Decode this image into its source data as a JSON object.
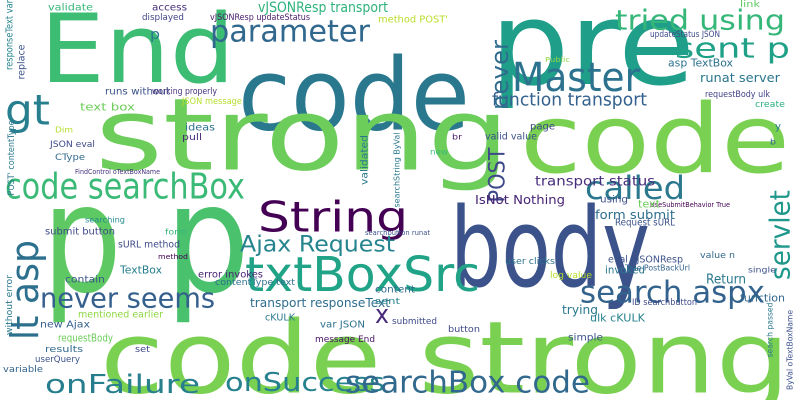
{
  "words": [
    "pre",
    "End",
    "code",
    "strong",
    "code",
    "p",
    "p",
    "body",
    "code strong",
    "String",
    "txtBoxSrc",
    "Master",
    "parameter",
    "tried using",
    "sent p",
    "gt",
    "lt asp",
    "code searchBox",
    "never seems",
    "onFailure",
    "onSuccess",
    "searchBox code",
    "search aspx",
    "called",
    "servlet",
    "Ajax Request",
    "function transport",
    "never",
    "POST",
    "x",
    "vJSONResp transport",
    "transport status",
    "IsNot Nothing",
    "form submit",
    "runat server",
    "asp TextBox",
    "updateStatus JSON",
    "link",
    "requestBody ulk",
    "create",
    "text box",
    "runs without",
    "working properly",
    "JSON message",
    "validate",
    "access",
    "displayed",
    "vJSONResp updateStatus",
    "method POST'",
    "p",
    "responseText var",
    "replace",
    "POST' contentType",
    "JSON eval",
    "CType",
    "Dim",
    "FindControl oTextBoxName",
    "ideas",
    "pull",
    "validated",
    "searchString ByVal",
    "TextBox",
    "sURL method",
    "method",
    "submit button",
    "searching",
    "form",
    "contain",
    "error invokes",
    "contentType text",
    "mentioned earlier",
    "transport responseText",
    "new Ajax",
    "requestBody",
    "results",
    "userQuery",
    "variable",
    "without error",
    "set",
    "var JSON",
    "message End",
    "content",
    "sent",
    "submitted",
    "cKULK",
    "searchbutton runat",
    "eval vJSONResp",
    "Request sURL",
    "invoked",
    "Return",
    "value n",
    "ulk cKULK",
    "user clicks",
    "log value",
    "trying",
    "button",
    "simple",
    "ID searchbutton",
    "function",
    "single",
    "True PostBackUrl",
    "UseSubmitBehavior True",
    "search passed",
    "ByVal oTextBoxName",
    "page",
    "valid value",
    "br",
    "new",
    "Public",
    "text",
    "using",
    "y",
    "b"
  ]
}
